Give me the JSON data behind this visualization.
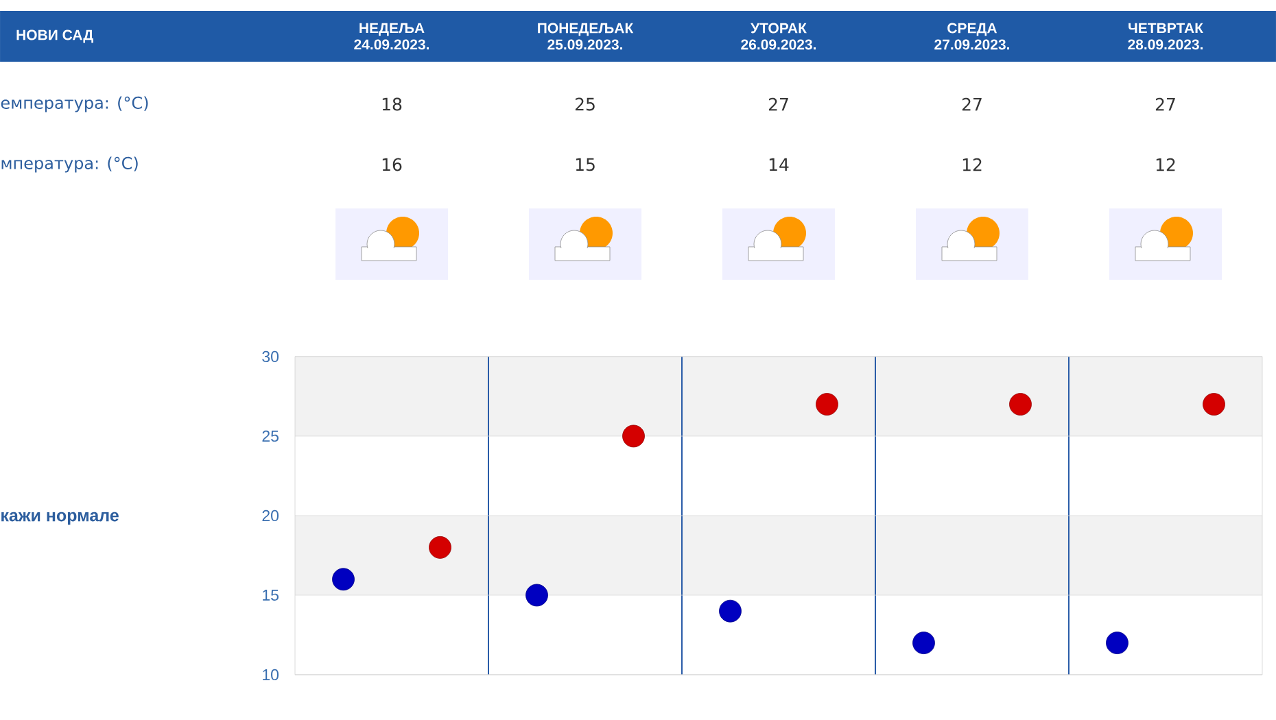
{
  "chart_data": [
    {
      "type": "other",
      "title": "НОВИ САД",
      "categories": [
        "НЕДЕЉА 24.09.2023.",
        "ПОНЕДЕЉАК 25.09.2023.",
        "УТОРАК 26.09.2023.",
        "СРЕДА 27.09.2023.",
        "ЧЕТВРТАК 28.09.2023."
      ],
      "series": [
        {
          "name": "емпература: (°C)",
          "values": [
            18,
            25,
            27,
            27,
            27
          ]
        },
        {
          "name": "мпература: (°C)",
          "values": [
            16,
            15,
            14,
            12,
            12
          ]
        }
      ],
      "data_labels": true
    },
    {
      "type": "scatter",
      "categories": [
        null,
        null,
        null,
        null,
        null
      ],
      "series": [
        {
          "color": "#d40000",
          "values": [
            18,
            25,
            27,
            27,
            27
          ]
        },
        {
          "color": "#0000c0",
          "values": [
            16,
            15,
            14,
            12,
            12
          ]
        }
      ],
      "ylim": [
        10,
        30
      ],
      "yticks": [
        10,
        15,
        20,
        25,
        30
      ],
      "grid": "y",
      "marker": "circle",
      "bands": [
        {
          "axis": "y",
          "from": 15,
          "to": 20,
          "color": "#f2f2f2"
        },
        {
          "axis": "y",
          "from": 25,
          "to": 30,
          "color": "#f2f2f2"
        }
      ],
      "annotations": [
        "кажи нормале"
      ]
    }
  ]
}
